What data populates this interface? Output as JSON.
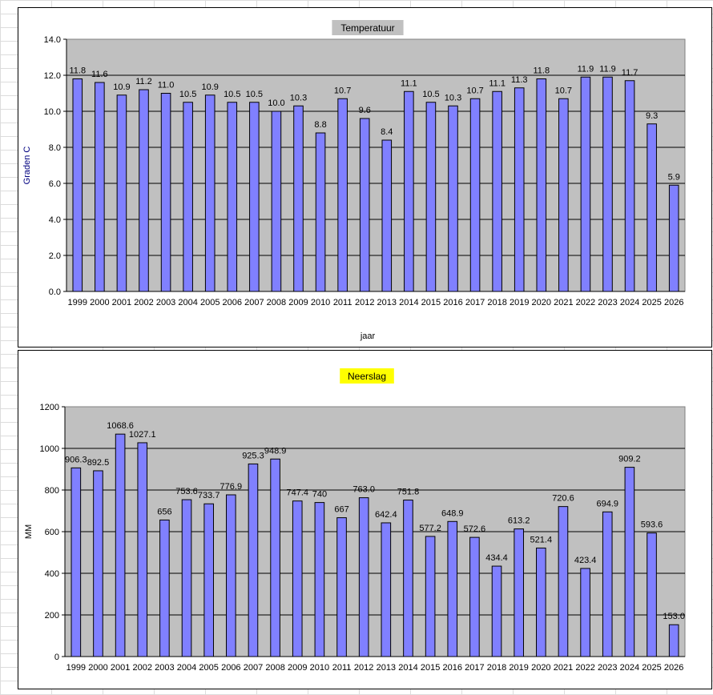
{
  "chart_data": [
    {
      "type": "bar",
      "title": "Temperatuur",
      "title_bg": "#c0c0c0",
      "xlabel": "jaar",
      "ylabel": "Graden C",
      "ylabel_color": "#000080",
      "ylim": [
        0,
        14
      ],
      "ytick_step": 2,
      "ytick_decimals": 1,
      "grid": true,
      "plot_bg": "#c0c0c0",
      "bar_color": "#8080ff",
      "categories": [
        "1999",
        "2000",
        "2001",
        "2002",
        "2003",
        "2004",
        "2005",
        "2006",
        "2007",
        "2008",
        "2009",
        "2010",
        "2011",
        "2012",
        "2013",
        "2014",
        "2015",
        "2016",
        "2017",
        "2018",
        "2019",
        "2020",
        "2021",
        "2022",
        "2023",
        "2024",
        "2025",
        "2026"
      ],
      "values": [
        11.8,
        11.6,
        10.9,
        11.2,
        11.0,
        10.5,
        10.9,
        10.5,
        10.5,
        10.0,
        10.3,
        8.8,
        10.7,
        9.6,
        8.4,
        11.1,
        10.5,
        10.3,
        10.7,
        11.1,
        11.3,
        11.8,
        10.7,
        11.9,
        11.9,
        11.7,
        9.3,
        5.9
      ],
      "labels": [
        "11.8",
        "11.6",
        "10.9",
        "11.2",
        "11.0",
        "10.5",
        "10.9",
        "10.5",
        "10.5",
        "10.0",
        "10.3",
        "8.8",
        "10.7",
        "9.6",
        "8.4",
        "11.1",
        "10.5",
        "10.3",
        "10.7",
        "11.1",
        "11.3",
        "11.8",
        "10.7",
        "11.9",
        "11.9",
        "11.7",
        "9.3",
        "5.9"
      ]
    },
    {
      "type": "bar",
      "title": "Neerslag",
      "title_bg": "#ffff00",
      "xlabel": "",
      "ylabel": "MM",
      "ylabel_color": "#000000",
      "ylim": [
        0,
        1200
      ],
      "ytick_step": 200,
      "ytick_decimals": 0,
      "grid": true,
      "plot_bg": "#c0c0c0",
      "bar_color": "#8080ff",
      "categories": [
        "1999",
        "2000",
        "2001",
        "2002",
        "2003",
        "2004",
        "2005",
        "2006",
        "2007",
        "2008",
        "2009",
        "2010",
        "2011",
        "2012",
        "2013",
        "2014",
        "2015",
        "2016",
        "2017",
        "2018",
        "2019",
        "2020",
        "2021",
        "2022",
        "2023",
        "2024",
        "2025",
        "2026"
      ],
      "values": [
        906.3,
        892.5,
        1068.6,
        1027.1,
        656,
        753.6,
        733.7,
        776.9,
        925.3,
        948.9,
        747.4,
        740,
        667,
        763.0,
        642.4,
        751.8,
        577.2,
        648.9,
        572.6,
        434.4,
        613.2,
        521.4,
        720.6,
        423.4,
        694.9,
        909.2,
        593.6,
        153.0
      ],
      "labels": [
        "906.3",
        "892.5",
        "1068.6",
        "1027.1",
        "656",
        "753.6",
        "733.7",
        "776.9",
        "925.3",
        "948.9",
        "747.4",
        "740",
        "667",
        "763.0",
        "642.4",
        "751.8",
        "577.2",
        "648.9",
        "572.6",
        "434.4",
        "613.2",
        "521.4",
        "720.6",
        "423.4",
        "694.9",
        "909.2",
        "593.6",
        "153.0"
      ]
    }
  ]
}
